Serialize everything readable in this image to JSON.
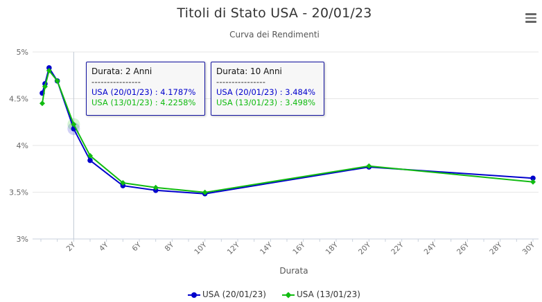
{
  "header": {
    "title": "Titoli di Stato USA - 20/01/23",
    "subtitle": "Curva dei Rendimenti"
  },
  "menu": {
    "icon": "hamburger-menu-icon"
  },
  "chart_data": {
    "type": "line",
    "title": "Titoli di Stato USA - 20/01/23",
    "subtitle": "Curva dei Rendimenti",
    "xlabel": "Durata",
    "ylabel": "",
    "xlim": [
      0,
      30
    ],
    "ylim": [
      3,
      5
    ],
    "y_ticks": [
      "3%",
      "3.5%",
      "4%",
      "4.5%",
      "5%"
    ],
    "y_tick_values": [
      3,
      3.5,
      4,
      4.5,
      5
    ],
    "x_ticks": [
      "2Y",
      "4Y",
      "6Y",
      "8Y",
      "10Y",
      "12Y",
      "14Y",
      "16Y",
      "18Y",
      "20Y",
      "22Y",
      "24Y",
      "26Y",
      "28Y",
      "30Y"
    ],
    "x_tick_values": [
      2,
      4,
      6,
      8,
      10,
      12,
      14,
      16,
      18,
      20,
      22,
      24,
      26,
      28,
      30
    ],
    "grid": true,
    "legend_position": "bottom-center",
    "crosshair_x": 2,
    "series": [
      {
        "name": "USA (20/01/23)",
        "color": "#0000cc",
        "marker": "circle",
        "points": [
          [
            0.083,
            4.56
          ],
          [
            0.25,
            4.66
          ],
          [
            0.5,
            4.83
          ],
          [
            1,
            4.69
          ],
          [
            2,
            4.1787
          ],
          [
            3,
            3.84
          ],
          [
            5,
            3.57
          ],
          [
            7,
            3.52
          ],
          [
            10,
            3.484
          ],
          [
            20,
            3.77
          ],
          [
            30,
            3.65
          ]
        ]
      },
      {
        "name": "USA (13/01/23)",
        "color": "#11bb11",
        "marker": "diamond",
        "points": [
          [
            0.083,
            4.45
          ],
          [
            0.25,
            4.63
          ],
          [
            0.5,
            4.8
          ],
          [
            1,
            4.69
          ],
          [
            2,
            4.2258
          ],
          [
            3,
            3.89
          ],
          [
            5,
            3.6
          ],
          [
            7,
            3.55
          ],
          [
            10,
            3.498
          ],
          [
            20,
            3.78
          ],
          [
            30,
            3.61
          ]
        ]
      }
    ]
  },
  "tooltips": [
    {
      "header": "Durata: 2 Anni",
      "separator": "----------------",
      "line1": "USA (20/01/23) : 4.1787%",
      "line2": "USA (13/01/23) : 4.2258%"
    },
    {
      "header": "Durata: 10 Anni",
      "separator": "----------------",
      "line1": "USA (20/01/23) : 3.484%",
      "line2": "USA (13/01/23) : 3.498%"
    }
  ],
  "legend": [
    {
      "label": "USA (20/01/23)",
      "color": "#0000cc"
    },
    {
      "label": "USA (13/01/23)",
      "color": "#11bb11"
    }
  ]
}
